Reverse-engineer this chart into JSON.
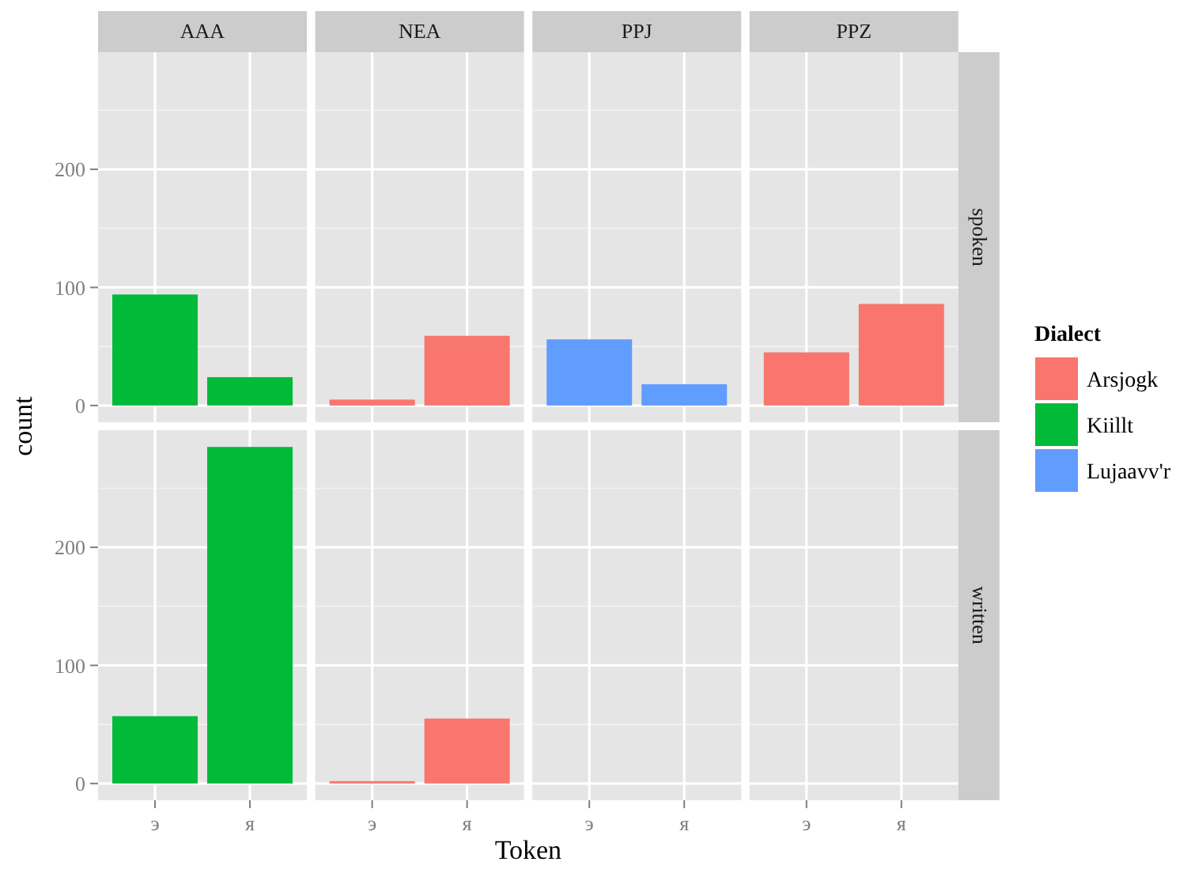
{
  "chart_data": [
    {
      "type": "bar",
      "title": "AAA",
      "ylabel": "count",
      "categories": [
        "э",
        "я"
      ],
      "series": [
        {
          "name": "Kiillt",
          "color": "#00ba38",
          "values": [
            94,
            24
          ]
        }
      ],
      "ylim": [
        -14.2,
        299.2
      ],
      "yticks": [
        0,
        100,
        200
      ],
      "grid": true,
      "tick_labels": "y"
    },
    {
      "type": "bar",
      "title": "NEA",
      "categories": [
        "э",
        "я"
      ],
      "series": [
        {
          "name": "Arsjogk",
          "color": "#f8766d",
          "values": [
            5,
            59
          ]
        }
      ],
      "ylim": [
        -14.2,
        299.2
      ],
      "yticks": [
        0,
        100,
        200
      ],
      "grid": true,
      "tick_labels": false
    },
    {
      "type": "bar",
      "title": "PPJ",
      "categories": [
        "э",
        "я"
      ],
      "series": [
        {
          "name": "Lujaavv'r",
          "color": "#619cff",
          "values": [
            56,
            18
          ]
        }
      ],
      "ylim": [
        -14.2,
        299.2
      ],
      "yticks": [
        0,
        100,
        200
      ],
      "grid": true,
      "tick_labels": false
    },
    {
      "type": "bar",
      "title": "PPZ",
      "y2label": "spoken",
      "categories": [
        "э",
        "я"
      ],
      "series": [
        {
          "name": "Arsjogk",
          "color": "#f8766d",
          "values": [
            45,
            86
          ]
        }
      ],
      "ylim": [
        -14.2,
        299.2
      ],
      "yticks": [
        0,
        100,
        200
      ],
      "grid": true,
      "tick_labels": false,
      "legend": "right",
      "legend_title": "Dialect"
    },
    {
      "type": "bar",
      "categories": [
        "э",
        "я"
      ],
      "series": [
        {
          "name": "Kiillt",
          "color": "#00ba38",
          "values": [
            57,
            285
          ]
        }
      ],
      "ylim": [
        -14.2,
        299.2
      ],
      "yticks": [
        0,
        100,
        200
      ],
      "grid": true
    },
    {
      "type": "bar",
      "xlabel": "Token",
      "categories": [
        "э",
        "я"
      ],
      "series": [
        {
          "name": "Arsjogk",
          "color": "#f8766d",
          "values": [
            2,
            55
          ]
        }
      ],
      "ylim": [
        -14.2,
        299.2
      ],
      "yticks": [
        0,
        100,
        200
      ],
      "grid": true,
      "tick_labels": "x"
    },
    {
      "type": "bar",
      "categories": [
        "э",
        "я"
      ],
      "series": [
        {
          "values": [
            null,
            null
          ]
        }
      ],
      "ylim": [
        -14.2,
        299.2
      ],
      "yticks": [
        0,
        100,
        200
      ],
      "grid": true,
      "tick_labels": "x"
    },
    {
      "type": "bar",
      "y2label": "written",
      "categories": [
        "э",
        "я"
      ],
      "series": [
        {
          "values": [
            null,
            null
          ]
        }
      ],
      "ylim": [
        -14.2,
        299.2
      ],
      "yticks": [
        0,
        100,
        200
      ],
      "grid": true,
      "tick_labels": "x"
    }
  ]
}
